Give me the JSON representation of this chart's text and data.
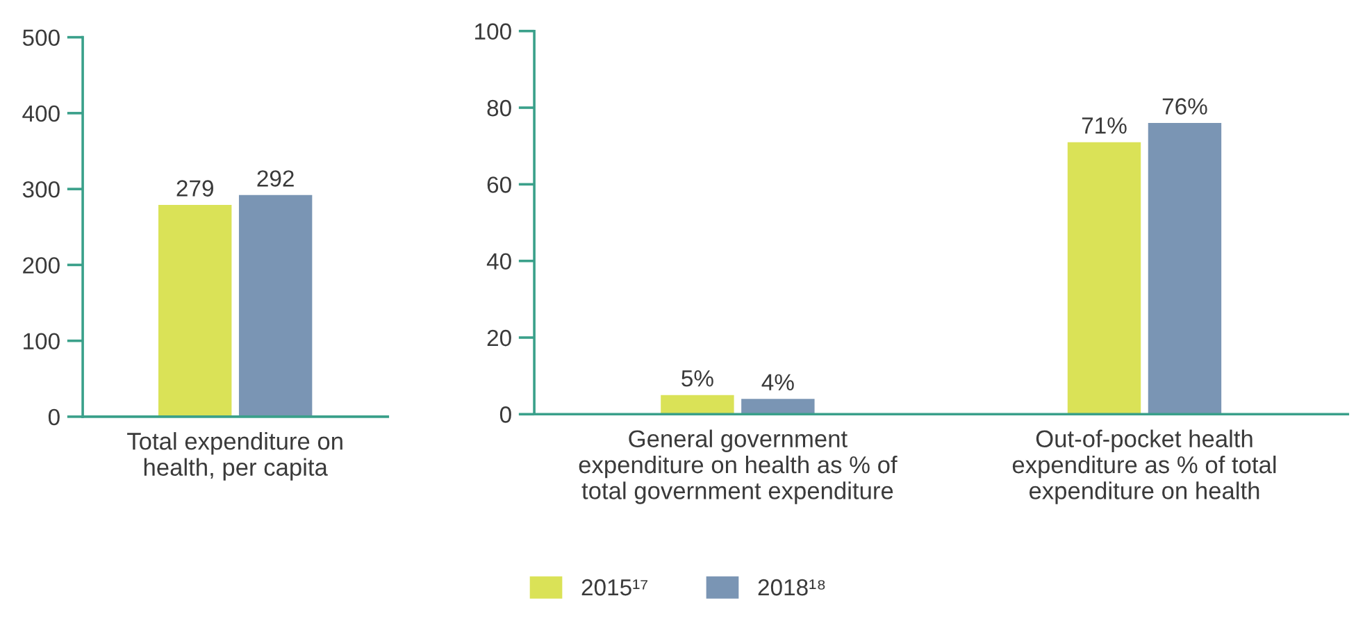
{
  "chart_data": [
    {
      "type": "bar",
      "categories": [
        "Total expenditure on\nhealth, per capita"
      ],
      "ylim": [
        0,
        500
      ],
      "yticks": [
        0,
        100,
        200,
        300,
        400,
        500
      ],
      "data_labels": true,
      "grid": false,
      "legend": "bottom",
      "series": [
        {
          "name": "2015¹⁷",
          "color": "#dae257",
          "values": [
            279
          ]
        },
        {
          "name": "2018¹⁸",
          "color": "#7a95b4",
          "values": [
            292
          ]
        }
      ]
    },
    {
      "type": "bar",
      "categories": [
        "General government\nexpenditure on health as % of\ntotal government expenditure",
        "Out-of-pocket health\nexpenditure as % of total\nexpenditure on health"
      ],
      "ylim": [
        0,
        100
      ],
      "yticks": [
        0,
        20,
        40,
        60,
        80,
        100
      ],
      "grid": false,
      "series": [
        {
          "color": "#dae257",
          "values": [
            5,
            71
          ],
          "value_labels": [
            "5%",
            "71%"
          ]
        },
        {
          "color": "#7a95b4",
          "values": [
            4,
            76
          ],
          "value_labels": [
            "4%",
            "76%"
          ]
        }
      ]
    }
  ]
}
